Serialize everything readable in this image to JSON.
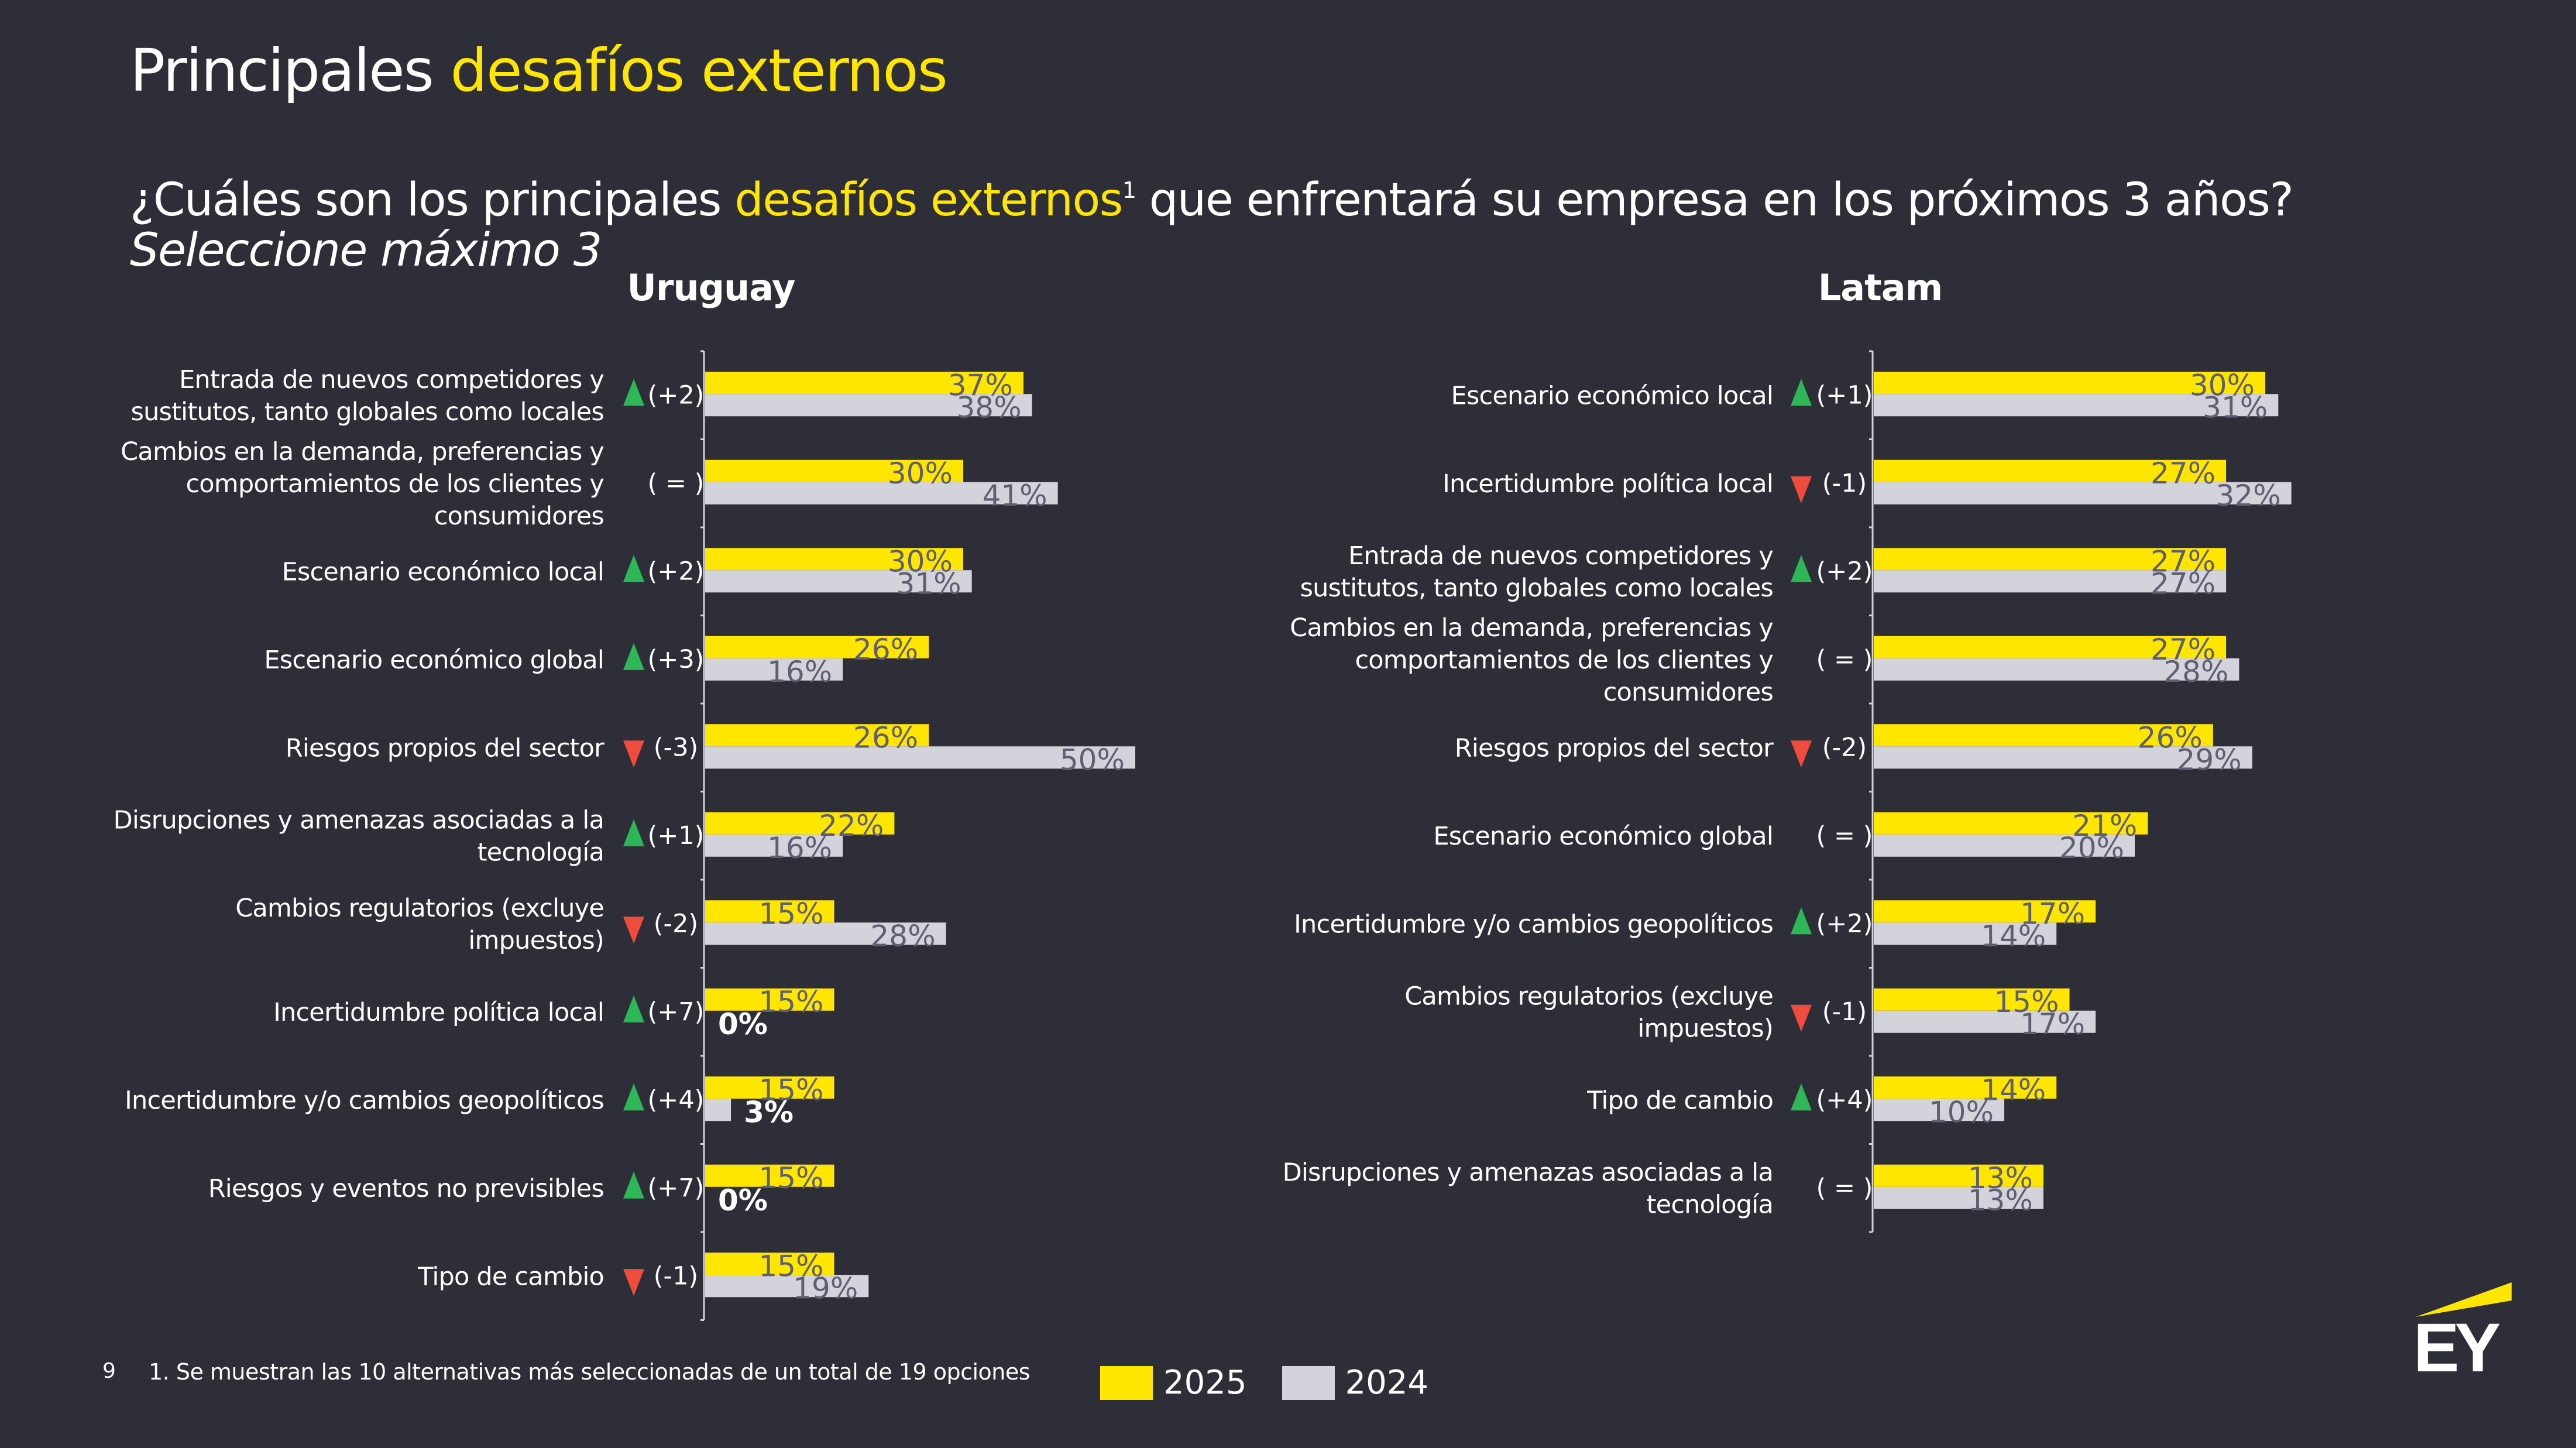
{
  "slide": {
    "title_part1": "Principales ",
    "title_part2": "desafíos externos",
    "subtitle_part1": "¿Cuáles son los principales ",
    "subtitle_part2": "desafíos externos",
    "subtitle_sup": "1",
    "subtitle_part3": " que enfrentará su empresa en los próximos 3 años?",
    "subtitle_line2": "Seleccione máximo 3",
    "page_number": "9",
    "footnote": "1. Se muestran las 10 alternativas más seleccionadas de un total de 19 opciones",
    "logo_text": "EY"
  },
  "colors": {
    "background": "#2e2e38",
    "accent_yellow": "#ffe600",
    "bar_2024": "#d3d3dc",
    "value_label": "#5f5f73",
    "up_arrow": "#2db757",
    "down_arrow": "#f04c3e"
  },
  "legend": [
    {
      "label": "2025",
      "color": "#ffe600"
    },
    {
      "label": "2024",
      "color": "#d3d3dc"
    }
  ],
  "chart_data": [
    {
      "type": "bar",
      "orientation": "horizontal",
      "title": "Uruguay",
      "categories": [
        "Entrada de nuevos competidores y|sustitutos, tanto globales como locales",
        "Cambios en la demanda, preferencias y|comportamientos de los clientes y|consumidores",
        "Escenario económico local",
        "Escenario económico global",
        "Riesgos propios del sector",
        "Disrupciones y amenazas asociadas a la|tecnología",
        "Cambios regulatorios (excluye|impuestos)",
        "Incertidumbre política local",
        "Incertidumbre y/o cambios geopolíticos",
        "Riesgos y eventos no previsibles",
        "Tipo de cambio"
      ],
      "series": [
        {
          "name": "2025",
          "values": [
            37,
            30,
            30,
            26,
            26,
            22,
            15,
            15,
            15,
            15,
            15
          ]
        },
        {
          "name": "2024",
          "values": [
            38,
            41,
            31,
            16,
            50,
            16,
            28,
            0,
            3,
            0,
            19
          ]
        }
      ],
      "value_labels_2025": [
        "37%",
        "30%",
        "30%",
        "26%",
        "26%",
        "22%",
        "15%",
        "15%",
        "15%",
        "15%",
        "15%"
      ],
      "value_labels_2024": [
        "38%",
        "41%",
        "31%",
        "16%",
        "50%",
        "16%",
        "28%",
        "0%",
        "3%",
        "0%",
        "19%"
      ],
      "rank_change": [
        {
          "dir": "up",
          "text": "(+2)"
        },
        {
          "dir": "none",
          "text": "( = )"
        },
        {
          "dir": "up",
          "text": "(+2)"
        },
        {
          "dir": "up",
          "text": "(+3)"
        },
        {
          "dir": "down",
          "text": "(-3)"
        },
        {
          "dir": "up",
          "text": "(+1)"
        },
        {
          "dir": "down",
          "text": "(-2)"
        },
        {
          "dir": "up",
          "text": "(+7)"
        },
        {
          "dir": "up",
          "text": "(+4)"
        },
        {
          "dir": "up",
          "text": "(+7)"
        },
        {
          "dir": "down",
          "text": "(-1)"
        }
      ],
      "unit": "%",
      "xlim": [
        0,
        50
      ],
      "grid": false,
      "legend": "bottom"
    },
    {
      "type": "bar",
      "orientation": "horizontal",
      "title": "Latam",
      "categories": [
        "Escenario económico local",
        "Incertidumbre política local",
        "Entrada de nuevos competidores y|sustitutos, tanto globales como locales",
        "Cambios en la demanda, preferencias y|comportamientos de los clientes y|consumidores",
        "Riesgos propios del sector",
        "Escenario económico global",
        "Incertidumbre y/o cambios geopolíticos",
        "Cambios regulatorios (excluye|impuestos)",
        "Tipo de cambio",
        "Disrupciones y amenazas asociadas a la|tecnología"
      ],
      "series": [
        {
          "name": "2025",
          "values": [
            30,
            27,
            27,
            27,
            26,
            21,
            17,
            15,
            14,
            13
          ]
        },
        {
          "name": "2024",
          "values": [
            31,
            32,
            27,
            28,
            29,
            20,
            14,
            17,
            10,
            13
          ]
        }
      ],
      "value_labels_2025": [
        "30%",
        "27%",
        "27%",
        "27%",
        "26%",
        "21%",
        "17%",
        "15%",
        "14%",
        "13%"
      ],
      "value_labels_2024": [
        "31%",
        "32%",
        "27%",
        "28%",
        "29%",
        "20%",
        "14%",
        "17%",
        "10%",
        "13%"
      ],
      "rank_change": [
        {
          "dir": "up",
          "text": "(+1)"
        },
        {
          "dir": "down",
          "text": "(-1)"
        },
        {
          "dir": "up",
          "text": "(+2)"
        },
        {
          "dir": "none",
          "text": "( = )"
        },
        {
          "dir": "down",
          "text": "(-2)"
        },
        {
          "dir": "none",
          "text": "( = )"
        },
        {
          "dir": "up",
          "text": "(+2)"
        },
        {
          "dir": "down",
          "text": "(-1)"
        },
        {
          "dir": "up",
          "text": "(+4)"
        },
        {
          "dir": "none",
          "text": "( = )"
        }
      ],
      "unit": "%",
      "xlim": [
        0,
        32
      ],
      "grid": false,
      "legend": "bottom"
    }
  ]
}
